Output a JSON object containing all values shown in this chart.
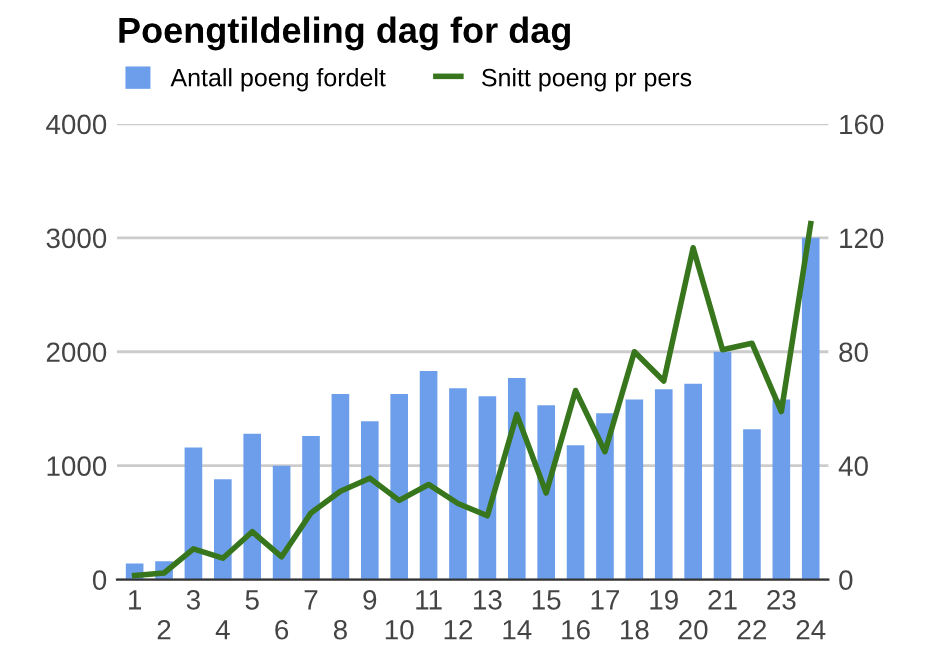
{
  "chart_data": {
    "type": "bar",
    "title": "Poengtildeling dag for dag",
    "categories": [
      "1",
      "2",
      "3",
      "4",
      "5",
      "6",
      "7",
      "8",
      "9",
      "10",
      "11",
      "12",
      "13",
      "14",
      "15",
      "16",
      "17",
      "18",
      "19",
      "20",
      "21",
      "22",
      "23",
      "24"
    ],
    "series": [
      {
        "name": "Antall poeng fordelt",
        "color": "#6d9eeb",
        "values": [
          140,
          160,
          1160,
          880,
          1280,
          1000,
          1260,
          1630,
          1390,
          1630,
          1830,
          1680,
          1610,
          1770,
          1530,
          1180,
          1460,
          1580,
          1670,
          1720,
          2000,
          1320,
          1580,
          3000
        ]
      },
      {
        "name": "Snitt poeng pr pers",
        "type": "line",
        "axis": "y2",
        "color": "#38761d",
        "values": [
          1.4,
          2.3,
          10.8,
          7.5,
          16.8,
          8,
          23.4,
          31,
          35.6,
          27.8,
          33.4,
          26.7,
          22.4,
          58,
          30.4,
          66.4,
          44.9,
          80,
          69.7,
          116.5,
          80.7,
          83,
          59,
          125
        ]
      }
    ],
    "ylim": [
      0,
      4000
    ],
    "yticks": [
      0,
      1000,
      2000,
      3000,
      4000
    ],
    "y2lim": [
      0,
      160
    ],
    "y2ticks": [
      0,
      40,
      80,
      120,
      160
    ],
    "grid": "y",
    "legend": "top left",
    "marker": "none",
    "line_style": "solid"
  }
}
